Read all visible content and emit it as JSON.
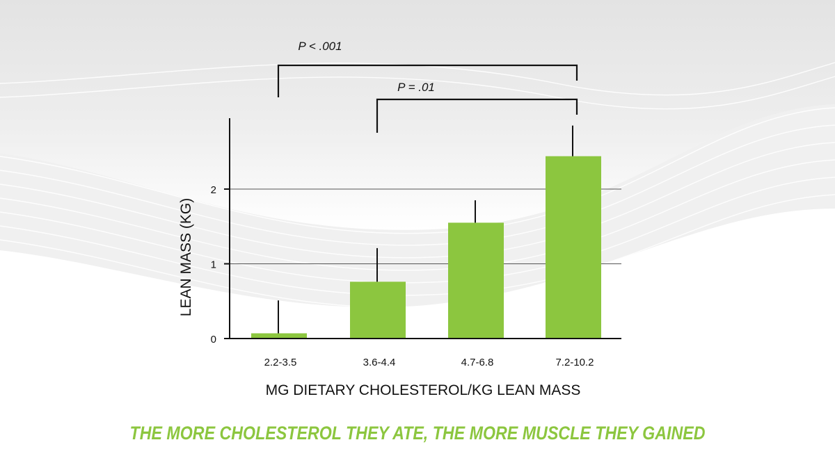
{
  "colors": {
    "bar": "#8cc63f",
    "caption": "#8cc63f",
    "axis": "#111111",
    "grid": "#555555"
  },
  "chart_data": {
    "type": "bar",
    "title": "",
    "xlabel": "MG DIETARY CHOLESTEROL/KG LEAN MASS",
    "ylabel": "LEAN MASS (KG)",
    "categories": [
      "2.2-3.5",
      "3.6-4.4",
      "4.7-6.8",
      "7.2-10.2"
    ],
    "values": [
      0.07,
      0.76,
      1.55,
      2.44
    ],
    "error_upper": [
      0.51,
      1.21,
      1.85,
      2.85
    ],
    "yticks": [
      0,
      1,
      2
    ],
    "ylim": [
      0,
      2.9
    ],
    "grid": true,
    "significance": [
      {
        "label": "P < .001",
        "from": "2.2-3.5",
        "to": "7.2-10.2"
      },
      {
        "label": "P = .01",
        "from": "3.6-4.4",
        "to": "7.2-10.2"
      }
    ]
  },
  "caption": "THE MORE CHOLESTEROL THEY ATE, THE MORE MUSCLE THEY GAINED"
}
